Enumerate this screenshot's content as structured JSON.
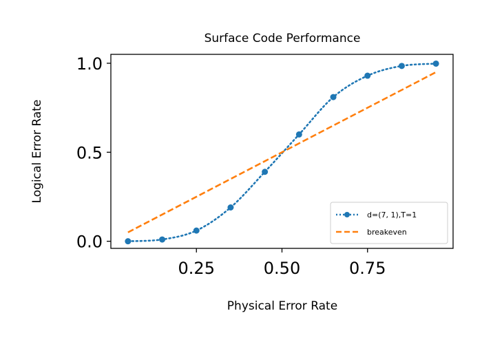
{
  "chart_data": {
    "type": "line",
    "title": "Surface Code Performance",
    "xlabel": "Physical Error Rate",
    "ylabel": "Logical Error Rate",
    "xlim": [
      0.0,
      1.0
    ],
    "ylim": [
      -0.04,
      1.05
    ],
    "xticks": [
      0.25,
      0.5,
      0.75
    ],
    "xtick_labels": [
      "0.25",
      "0.50",
      "0.75"
    ],
    "yticks": [
      0.0,
      0.5,
      1.0
    ],
    "ytick_labels": [
      "0.0",
      "0.5",
      "1.0"
    ],
    "grid": false,
    "legend_position": "lower-right",
    "series": [
      {
        "name": "d=(7, 1),T=1",
        "style": "dotted-marker",
        "color": "#1f77b4",
        "x": [
          0.05,
          0.15,
          0.25,
          0.35,
          0.45,
          0.55,
          0.65,
          0.75,
          0.85,
          0.95
        ],
        "y": [
          0.0,
          0.01,
          0.06,
          0.19,
          0.39,
          0.6,
          0.81,
          0.93,
          0.985,
          0.998
        ]
      },
      {
        "name": "breakeven",
        "style": "dashed",
        "color": "#ff7f0e",
        "x": [
          0.05,
          0.95
        ],
        "y": [
          0.05,
          0.95
        ]
      }
    ]
  }
}
